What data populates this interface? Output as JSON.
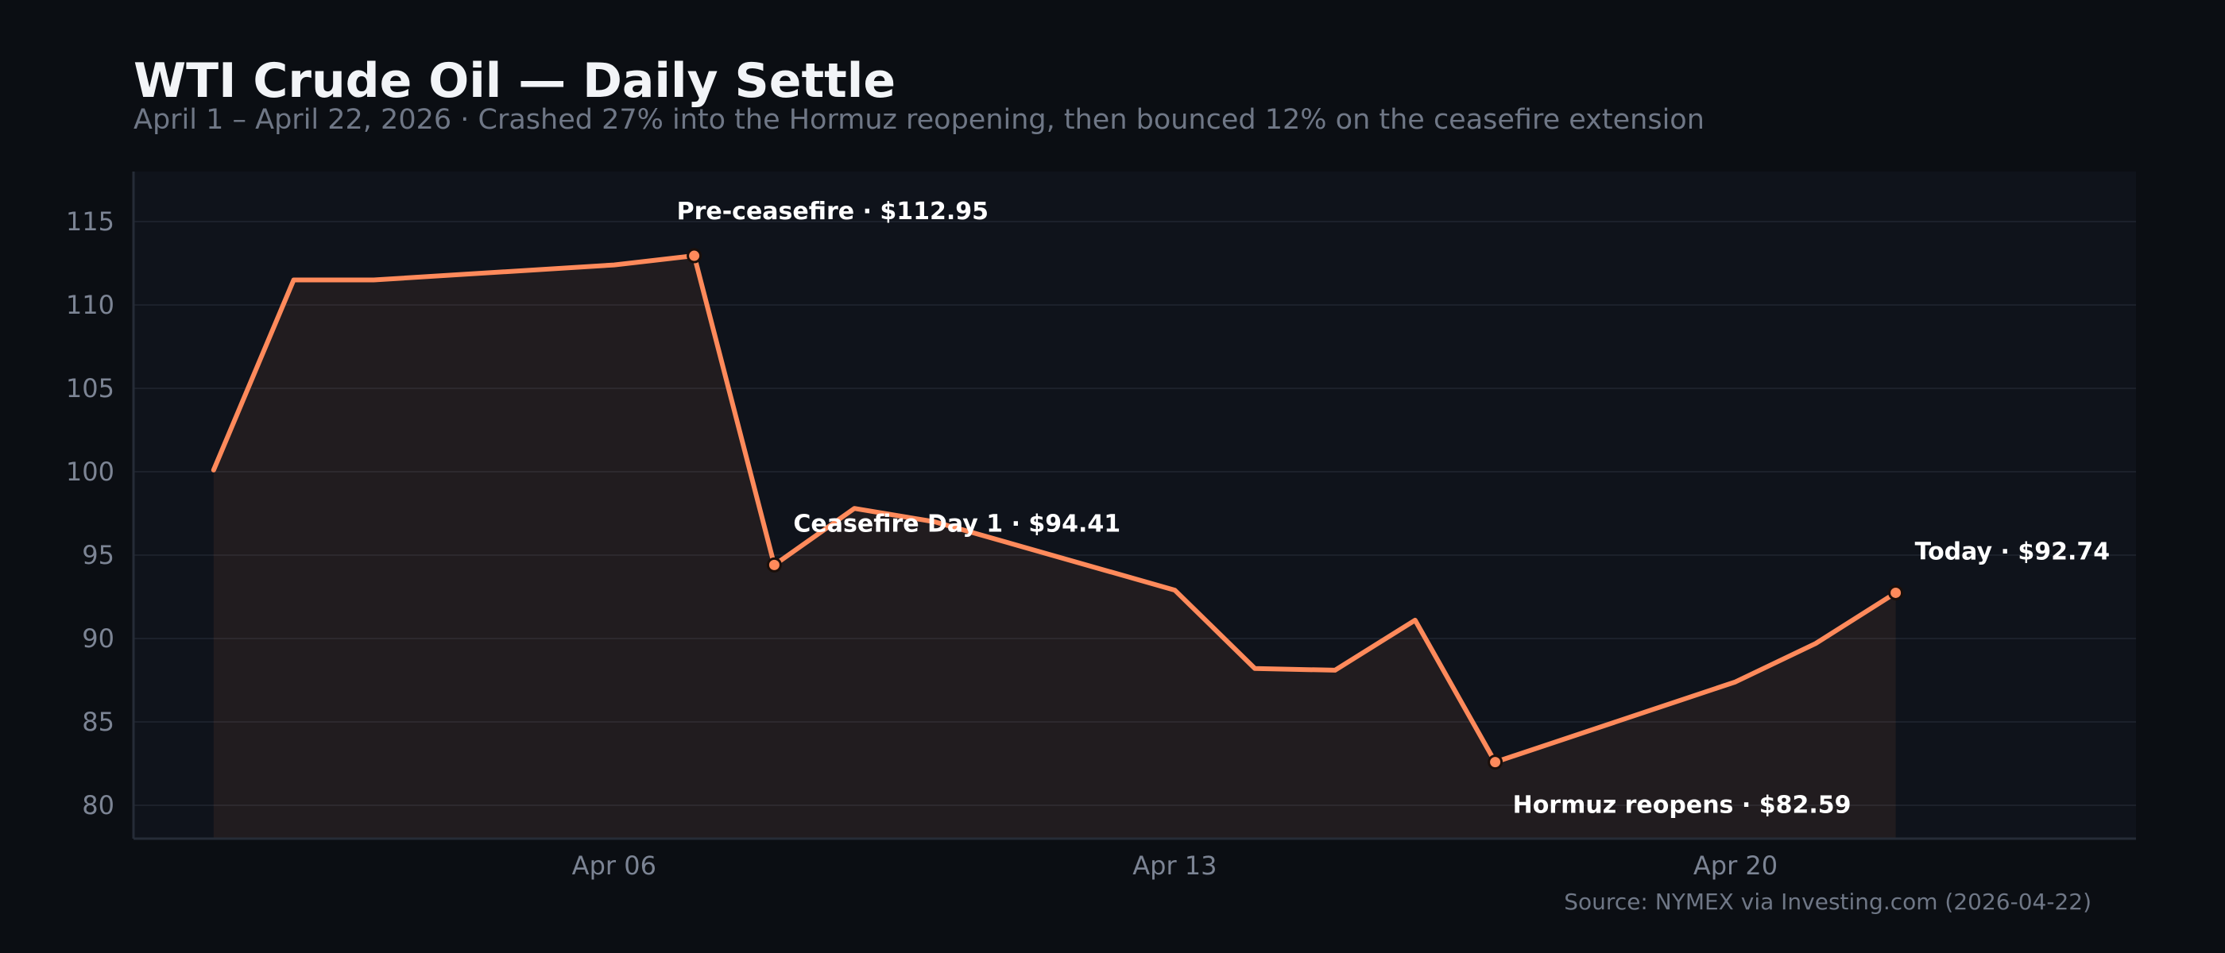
{
  "title": "WTI Crude Oil — Daily Settle",
  "subtitle": "April 1 – April 22, 2026   ·   Crashed 27% into the Hormuz reopening, then bounced 12% on the ceasefire extension",
  "source": "Source: NYMEX via Investing.com (2026-04-22)",
  "colors": {
    "background": "#0b0e13",
    "plot_background": "#0f131b",
    "line": "#ff8a5b",
    "gridline": "#1c212b",
    "marker_edge": "#1b0f0a"
  },
  "chart_data": {
    "type": "line",
    "title": "WTI Crude Oil — Daily Settle",
    "xlabel": "",
    "ylabel": "",
    "grid": true,
    "xlim": [
      "2026-03-31",
      "2026-04-25"
    ],
    "ylim": [
      78,
      118
    ],
    "x_ticks": [
      {
        "date": "2026-04-06",
        "label": "Apr 06"
      },
      {
        "date": "2026-04-13",
        "label": "Apr 13"
      },
      {
        "date": "2026-04-20",
        "label": "Apr 20"
      }
    ],
    "y_ticks": [
      80,
      85,
      90,
      95,
      100,
      105,
      110,
      115
    ],
    "series": [
      {
        "x": [
          "2026-04-01",
          "2026-04-02",
          "2026-04-03",
          "2026-04-06",
          "2026-04-07",
          "2026-04-08",
          "2026-04-09",
          "2026-04-10",
          "2026-04-13",
          "2026-04-14",
          "2026-04-15",
          "2026-04-16",
          "2026-04-17",
          "2026-04-20",
          "2026-04-21",
          "2026-04-22"
        ],
        "y": [
          100.1,
          111.5,
          111.5,
          112.4,
          112.95,
          94.41,
          97.8,
          97.0,
          92.9,
          88.2,
          88.1,
          91.1,
          82.59,
          87.4,
          89.7,
          92.74
        ]
      }
    ],
    "annotations": [
      {
        "date": "2026-04-07",
        "value": 112.95,
        "label": "Pre-ceasefire · $112.95",
        "position": "above"
      },
      {
        "date": "2026-04-08",
        "value": 94.41,
        "label": "Ceasefire Day 1 · $94.41",
        "position": "right"
      },
      {
        "date": "2026-04-17",
        "value": 82.59,
        "label": "Hormuz reopens · $82.59",
        "position": "below"
      },
      {
        "date": "2026-04-22",
        "value": 92.74,
        "label": "Today · $92.74",
        "position": "right"
      }
    ]
  }
}
